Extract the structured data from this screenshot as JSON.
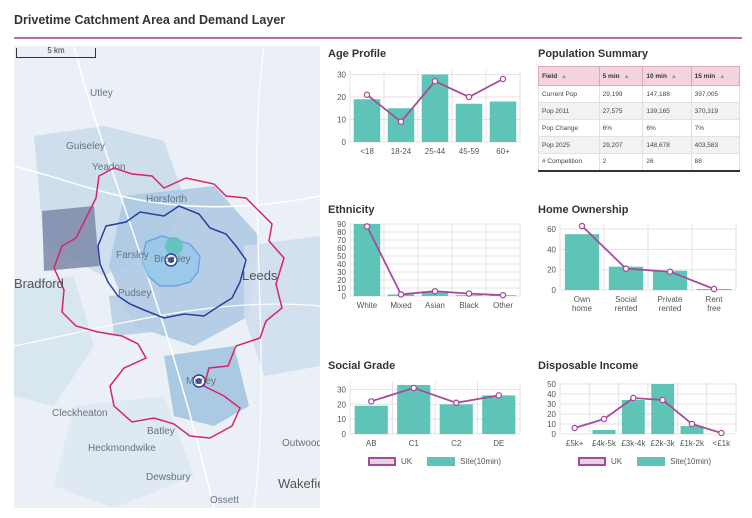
{
  "title": "Drivetime Catchment Area and Demand Layer",
  "map": {
    "scale_label": "5 km",
    "labels": [
      {
        "text": "Utley",
        "style": "normal"
      },
      {
        "text": "Guiseley",
        "style": "normal"
      },
      {
        "text": "Yeadon",
        "style": "normal"
      },
      {
        "text": "Horsforth",
        "style": "normal"
      },
      {
        "text": "Farsley",
        "style": "normal"
      },
      {
        "text": "Bramley",
        "style": "normal"
      },
      {
        "text": "Leeds",
        "style": "big"
      },
      {
        "text": "Bradford",
        "style": "big"
      },
      {
        "text": "Pudsey",
        "style": "normal"
      },
      {
        "text": "Morley",
        "style": "normal"
      },
      {
        "text": "Cleckheaton",
        "style": "normal"
      },
      {
        "text": "Batley",
        "style": "normal"
      },
      {
        "text": "Heckmondwike",
        "style": "normal"
      },
      {
        "text": "Outwood",
        "style": "normal"
      },
      {
        "text": "Dewsbury",
        "style": "normal"
      },
      {
        "text": "Ossett",
        "style": "normal"
      },
      {
        "text": "Wakefield",
        "style": "big"
      }
    ],
    "colors": {
      "drive_15": "#d6256b",
      "drive_10": "#2c3e9c",
      "drive_5": "#3a8ee0"
    }
  },
  "age_profile": {
    "title": "Age Profile",
    "chart_data": {
      "type": "bar",
      "categories": [
        "<18",
        "18-24",
        "25-44",
        "45-59",
        "60+"
      ],
      "series": [
        {
          "name": "Site(10min)",
          "kind": "bar",
          "values": [
            19,
            15,
            30,
            17,
            18
          ]
        },
        {
          "name": "UK",
          "kind": "line",
          "values": [
            21,
            9,
            27,
            20,
            28
          ]
        }
      ],
      "yticks": [
        0,
        10,
        20,
        30
      ],
      "ylim": [
        0,
        32
      ]
    }
  },
  "population_summary": {
    "title": "Population Summary",
    "headers": [
      "Field",
      "5 min",
      "10 min",
      "15 min"
    ],
    "sort_icon": "▲",
    "rows": [
      [
        "Current Pop",
        "29,199",
        "147,188",
        "397,005"
      ],
      [
        "Pop 2011",
        "27,575",
        "139,165",
        "370,319"
      ],
      [
        "Pop Change",
        "6%",
        "6%",
        "7%"
      ],
      [
        "Pop 2025",
        "29,207",
        "148,678",
        "403,583"
      ],
      [
        "# Competition",
        "2",
        "26",
        "88"
      ]
    ]
  },
  "ethnicity": {
    "title": "Ethnicity",
    "chart_data": {
      "type": "bar",
      "categories": [
        "White",
        "Mixed",
        "Asian",
        "Black",
        "Other"
      ],
      "series": [
        {
          "name": "Site(10min)",
          "kind": "bar",
          "values": [
            90,
            2,
            5,
            1,
            1
          ]
        },
        {
          "name": "UK",
          "kind": "line",
          "values": [
            87,
            2,
            6,
            3,
            1
          ]
        }
      ],
      "yticks": [
        0,
        10,
        20,
        30,
        40,
        50,
        60,
        70,
        80,
        90
      ],
      "ylim": [
        0,
        90
      ]
    }
  },
  "home_ownership": {
    "title": "Home Ownership",
    "chart_data": {
      "type": "bar",
      "categories": [
        "Own home",
        "Social rented",
        "Private rented",
        "Rent free"
      ],
      "series": [
        {
          "name": "Site(10min)",
          "kind": "bar",
          "values": [
            55,
            23,
            19,
            1
          ]
        },
        {
          "name": "UK",
          "kind": "line",
          "values": [
            63,
            21,
            18,
            1
          ]
        }
      ],
      "yticks": [
        0,
        20,
        40,
        60
      ],
      "ylim": [
        0,
        65
      ]
    }
  },
  "social_grade": {
    "title": "Social Grade",
    "chart_data": {
      "type": "bar",
      "categories": [
        "AB",
        "C1",
        "C2",
        "DE"
      ],
      "series": [
        {
          "name": "Site(10min)",
          "kind": "bar",
          "values": [
            19,
            33,
            20,
            26
          ]
        },
        {
          "name": "UK",
          "kind": "line",
          "values": [
            22,
            31,
            21,
            26
          ]
        }
      ],
      "yticks": [
        0,
        10,
        20,
        30
      ],
      "ylim": [
        0,
        35
      ]
    },
    "legend": {
      "uk": "UK",
      "site": "Site(10min)"
    }
  },
  "disposable_income": {
    "title": "Disposable Income",
    "chart_data": {
      "type": "bar",
      "categories": [
        "£5k+",
        "£4k-5k",
        "£3k-4k",
        "£2k-3k",
        "£1k-2k",
        "<£1k"
      ],
      "series": [
        {
          "name": "Site(10min)",
          "kind": "bar",
          "values": [
            0,
            4,
            34,
            50,
            8,
            0
          ]
        },
        {
          "name": "UK",
          "kind": "line",
          "values": [
            6,
            15,
            36,
            34,
            10,
            1
          ]
        }
      ],
      "yticks": [
        0,
        10,
        20,
        30,
        40,
        50
      ],
      "ylim": [
        0,
        52
      ]
    },
    "legend": {
      "uk": "UK",
      "site": "Site(10min)"
    }
  },
  "colors": {
    "bar": "#5fc4b8",
    "line": "#a54d9b",
    "grid": "#e3e3e3"
  }
}
